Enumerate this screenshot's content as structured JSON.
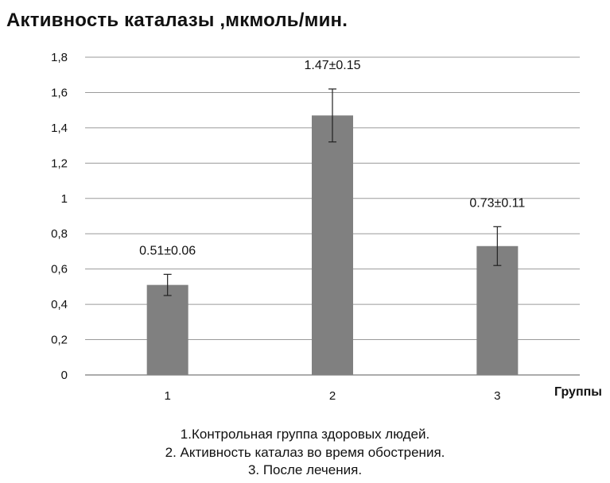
{
  "chart_data": {
    "type": "bar",
    "title": "Активность каталазы ,мкмоль/мин.",
    "xlabel": "Группы",
    "ylabel": "",
    "categories": [
      "1",
      "2",
      "3"
    ],
    "values": [
      0.51,
      1.47,
      0.73
    ],
    "errors": [
      0.06,
      0.15,
      0.11
    ],
    "data_labels": [
      "0.51±0.06",
      "1.47±0.15",
      "0.73±0.11"
    ],
    "ylim": [
      0,
      1.8
    ],
    "y_ticks": [
      "0",
      "0,2",
      "0,4",
      "0,6",
      "0,8",
      "1",
      "1,2",
      "1,4",
      "1,6",
      "1,8"
    ],
    "grid": true,
    "legend_lines": [
      "1.Контрольная группа здоровых людей.",
      "2. Активность каталаз во время обострения.",
      "3. После лечения."
    ],
    "bar_color": "#808080",
    "grid_color": "#9a9a9a"
  }
}
